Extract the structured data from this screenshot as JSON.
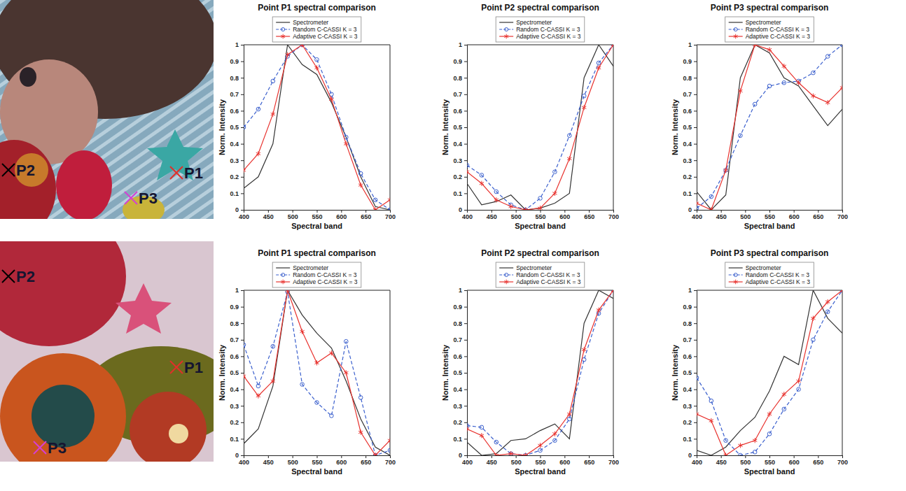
{
  "chart_data": [
    {
      "type": "line",
      "title": "Point P1 spectral comparison",
      "x_label": "Spectral band",
      "y_label": "Norm. Intensity",
      "x": [
        400,
        430,
        460,
        490,
        520,
        550,
        580,
        610,
        640,
        670,
        700
      ],
      "xlim": [
        400,
        700
      ],
      "xticks": [
        400,
        450,
        500,
        550,
        600,
        650,
        700
      ],
      "ylim": [
        0,
        1
      ],
      "yticks": [
        0,
        0.1,
        0.2,
        0.3,
        0.4,
        0.5,
        0.6,
        0.7,
        0.8,
        0.9,
        1
      ],
      "legend": "top",
      "series": [
        {
          "name": "Spectrometer",
          "color": "#333333",
          "marker": "none",
          "line_style": "solid",
          "values": [
            0.13,
            0.2,
            0.4,
            1.0,
            0.88,
            0.82,
            0.65,
            0.44,
            0.2,
            0.02,
            0.0
          ]
        },
        {
          "name": "Random C-CASSI K = 3",
          "color": "#3a5fcd",
          "marker": "circle",
          "line_style": "dashed",
          "values": [
            0.5,
            0.61,
            0.78,
            0.93,
            1.0,
            0.91,
            0.7,
            0.44,
            0.22,
            0.06,
            0.0
          ]
        },
        {
          "name": "Adaptive C-CASSI K = 3",
          "color": "#e8322e",
          "marker": "asterisk",
          "line_style": "solid",
          "values": [
            0.24,
            0.34,
            0.58,
            0.94,
            1.0,
            0.86,
            0.67,
            0.4,
            0.15,
            0.0,
            0.06
          ]
        }
      ]
    },
    {
      "type": "line",
      "title": "Point P2 spectral comparison",
      "x_label": "Spectral band",
      "y_label": "Norm. Intensity",
      "x": [
        400,
        430,
        460,
        490,
        520,
        550,
        580,
        610,
        640,
        670,
        700
      ],
      "xlim": [
        400,
        700
      ],
      "xticks": [
        400,
        450,
        500,
        550,
        600,
        650,
        700
      ],
      "ylim": [
        0,
        1
      ],
      "yticks": [
        0,
        0.1,
        0.2,
        0.3,
        0.4,
        0.5,
        0.6,
        0.7,
        0.8,
        0.9,
        1
      ],
      "legend": "top",
      "series": [
        {
          "name": "Spectrometer",
          "color": "#333333",
          "marker": "none",
          "line_style": "solid",
          "values": [
            0.16,
            0.03,
            0.05,
            0.09,
            0.0,
            0.01,
            0.04,
            0.1,
            0.8,
            1.0,
            0.87
          ]
        },
        {
          "name": "Random C-CASSI K = 3",
          "color": "#3a5fcd",
          "marker": "circle",
          "line_style": "dashed",
          "values": [
            0.27,
            0.21,
            0.11,
            0.03,
            0.0,
            0.07,
            0.23,
            0.45,
            0.69,
            0.89,
            1.0
          ]
        },
        {
          "name": "Adaptive C-CASSI K = 3",
          "color": "#e8322e",
          "marker": "asterisk",
          "line_style": "solid",
          "values": [
            0.23,
            0.16,
            0.06,
            0.02,
            0.0,
            0.01,
            0.1,
            0.31,
            0.62,
            0.86,
            1.0
          ]
        }
      ]
    },
    {
      "type": "line",
      "title": "Point P3 spectral comparison",
      "x_label": "Spectral band",
      "y_label": "Norm. Intensity",
      "x": [
        400,
        430,
        460,
        490,
        520,
        550,
        580,
        610,
        640,
        670,
        700
      ],
      "xlim": [
        400,
        700
      ],
      "xticks": [
        400,
        450,
        500,
        550,
        600,
        650,
        700
      ],
      "ylim": [
        0,
        1
      ],
      "yticks": [
        0,
        0.1,
        0.2,
        0.3,
        0.4,
        0.5,
        0.6,
        0.7,
        0.8,
        0.9,
        1
      ],
      "legend": "top",
      "series": [
        {
          "name": "Spectrometer",
          "color": "#333333",
          "marker": "none",
          "line_style": "solid",
          "values": [
            0.11,
            0.0,
            0.09,
            0.8,
            1.0,
            0.95,
            0.8,
            0.75,
            0.63,
            0.51,
            0.61
          ]
        },
        {
          "name": "Random C-CASSI K = 3",
          "color": "#3a5fcd",
          "marker": "circle",
          "line_style": "dashed",
          "values": [
            0.01,
            0.08,
            0.24,
            0.45,
            0.64,
            0.75,
            0.77,
            0.78,
            0.83,
            0.93,
            1.0
          ]
        },
        {
          "name": "Adaptive C-CASSI K = 3",
          "color": "#e8322e",
          "marker": "asterisk",
          "line_style": "solid",
          "values": [
            0.04,
            0.0,
            0.24,
            0.72,
            1.0,
            0.97,
            0.87,
            0.77,
            0.69,
            0.65,
            0.74
          ]
        }
      ]
    },
    {
      "type": "line",
      "title": "Point P1 spectral comparison",
      "x_label": "Spectral band",
      "y_label": "Norm. Intensity",
      "x": [
        400,
        430,
        460,
        490,
        520,
        550,
        580,
        610,
        640,
        670,
        700
      ],
      "xlim": [
        400,
        700
      ],
      "xticks": [
        400,
        450,
        500,
        550,
        600,
        650,
        700
      ],
      "ylim": [
        0,
        1
      ],
      "yticks": [
        0,
        0.1,
        0.2,
        0.3,
        0.4,
        0.5,
        0.6,
        0.7,
        0.8,
        0.9,
        1
      ],
      "legend": "top",
      "series": [
        {
          "name": "Spectrometer",
          "color": "#333333",
          "marker": "none",
          "line_style": "solid",
          "values": [
            0.07,
            0.16,
            0.42,
            1.0,
            0.85,
            0.74,
            0.65,
            0.45,
            0.22,
            0.05,
            0.0
          ]
        },
        {
          "name": "Random C-CASSI K = 3",
          "color": "#3a5fcd",
          "marker": "circle",
          "line_style": "dashed",
          "values": [
            0.67,
            0.42,
            0.66,
            0.99,
            0.43,
            0.32,
            0.24,
            0.69,
            0.35,
            0.0,
            0.03
          ]
        },
        {
          "name": "Adaptive C-CASSI K = 3",
          "color": "#e8322e",
          "marker": "asterisk",
          "line_style": "solid",
          "values": [
            0.48,
            0.36,
            0.45,
            1.0,
            0.75,
            0.56,
            0.62,
            0.5,
            0.14,
            0.0,
            0.09
          ]
        }
      ]
    },
    {
      "type": "line",
      "title": "Point P2 spectral comparison",
      "x_label": "Spectral band",
      "y_label": "Norm. Intensity",
      "x": [
        400,
        430,
        460,
        490,
        520,
        550,
        580,
        610,
        640,
        670,
        700
      ],
      "xlim": [
        400,
        700
      ],
      "xticks": [
        400,
        450,
        500,
        550,
        600,
        650,
        700
      ],
      "ylim": [
        0,
        1
      ],
      "yticks": [
        0,
        0.1,
        0.2,
        0.3,
        0.4,
        0.5,
        0.6,
        0.7,
        0.8,
        0.9,
        1
      ],
      "legend": "top",
      "series": [
        {
          "name": "Spectrometer",
          "color": "#333333",
          "marker": "none",
          "line_style": "solid",
          "values": [
            0.08,
            0.0,
            0.01,
            0.09,
            0.1,
            0.15,
            0.19,
            0.1,
            0.8,
            1.0,
            0.95
          ]
        },
        {
          "name": "Random C-CASSI K = 3",
          "color": "#3a5fcd",
          "marker": "circle",
          "line_style": "dashed",
          "values": [
            0.18,
            0.17,
            0.08,
            0.01,
            0.0,
            0.03,
            0.09,
            0.22,
            0.58,
            0.86,
            1.0
          ]
        },
        {
          "name": "Adaptive C-CASSI K = 3",
          "color": "#e8322e",
          "marker": "asterisk",
          "line_style": "solid",
          "values": [
            0.16,
            0.12,
            0.0,
            0.01,
            0.0,
            0.06,
            0.13,
            0.25,
            0.64,
            0.88,
            1.0
          ]
        }
      ]
    },
    {
      "type": "line",
      "title": "Point P3 spectral comparison",
      "x_label": "Spectral band",
      "y_label": "Norm. Intensity",
      "x": [
        400,
        430,
        460,
        490,
        520,
        550,
        580,
        610,
        640,
        670,
        700
      ],
      "xlim": [
        400,
        700
      ],
      "xticks": [
        400,
        450,
        500,
        550,
        600,
        650,
        700
      ],
      "ylim": [
        0,
        1
      ],
      "yticks": [
        0,
        0.1,
        0.2,
        0.3,
        0.4,
        0.5,
        0.6,
        0.7,
        0.8,
        0.9,
        1
      ],
      "legend": "top",
      "series": [
        {
          "name": "Spectrometer",
          "color": "#333333",
          "marker": "none",
          "line_style": "solid",
          "values": [
            0.03,
            0.0,
            0.05,
            0.15,
            0.23,
            0.39,
            0.6,
            0.55,
            1.0,
            0.83,
            0.74
          ]
        },
        {
          "name": "Random C-CASSI K = 3",
          "color": "#3a5fcd",
          "marker": "circle",
          "line_style": "dashed",
          "values": [
            0.47,
            0.33,
            0.09,
            0.0,
            0.02,
            0.13,
            0.28,
            0.4,
            0.7,
            0.87,
            1.0
          ]
        },
        {
          "name": "Adaptive C-CASSI K = 3",
          "color": "#e8322e",
          "marker": "asterisk",
          "line_style": "solid",
          "values": [
            0.25,
            0.21,
            0.0,
            0.06,
            0.09,
            0.25,
            0.37,
            0.45,
            0.83,
            0.93,
            1.0
          ]
        }
      ]
    }
  ],
  "images": [
    {
      "points": [
        {
          "label": "P2",
          "color": "#000000"
        },
        {
          "label": "P1",
          "color": "#e0302a"
        },
        {
          "label": "P3",
          "color": "#d43fd4"
        }
      ]
    },
    {
      "points": [
        {
          "label": "P2",
          "color": "#000000"
        },
        {
          "label": "P1",
          "color": "#e0302a"
        },
        {
          "label": "P3",
          "color": "#d43fd4"
        }
      ]
    }
  ]
}
